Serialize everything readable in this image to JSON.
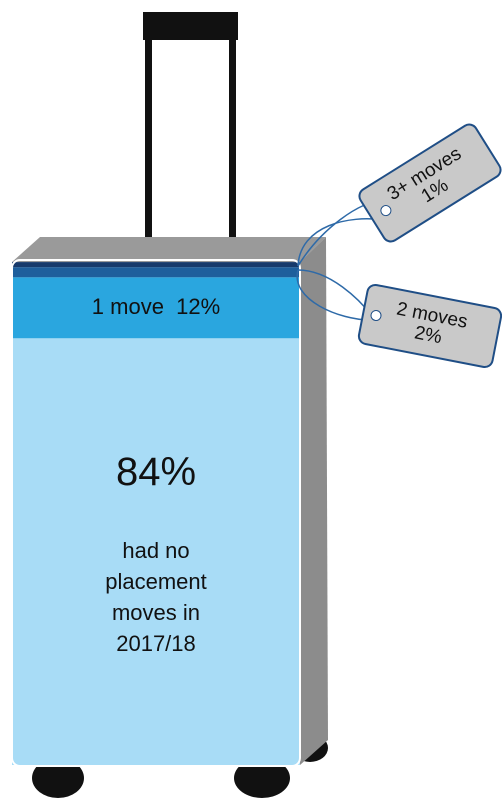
{
  "chart_data": {
    "type": "stacked",
    "series": [
      {
        "name": "had no placement moves in 2017/18",
        "values": [
          84
        ],
        "value_labels": [
          "84%"
        ],
        "color": "#a8dcf6"
      },
      {
        "name": "1 move",
        "values": [
          12
        ],
        "value_labels": [
          "12%"
        ],
        "color": "#2aa6df"
      },
      {
        "name": "2 moves",
        "values": [
          2
        ],
        "value_labels": [
          "2%"
        ],
        "color": "#1e5f9c"
      },
      {
        "name": "3+ moves",
        "values": [
          1
        ],
        "value_labels": [
          "1%"
        ],
        "color": "#173a6b"
      }
    ]
  }
}
